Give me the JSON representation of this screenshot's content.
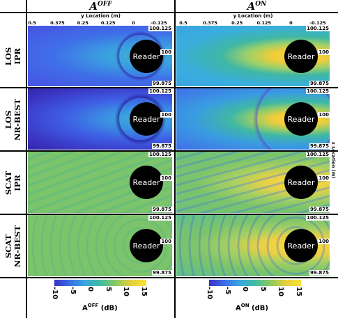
{
  "columns": [
    {
      "id": "off",
      "title": "A",
      "sup": "OFF"
    },
    {
      "id": "on",
      "title": "A",
      "sup": "ON"
    }
  ],
  "xaxis_label": "y Location (m)",
  "xaxis_ticks": [
    "0.5",
    "0.375",
    "0.25",
    "0.125",
    "0",
    "-0.125"
  ],
  "yaxis_label": "x Location (m)",
  "yaxis_ticks": [
    "100.125",
    "100",
    "99.875"
  ],
  "rows": [
    {
      "id": "los-ipr",
      "line1": "LOS",
      "line2": "IPR"
    },
    {
      "id": "los-nr-best",
      "line1": "LOS",
      "line2": "NR-BEST"
    },
    {
      "id": "scat-ipr",
      "line1": "SCAT",
      "line2": "IPR"
    },
    {
      "id": "scat-nr-best",
      "line1": "SCAT",
      "line2": "NR-BEST"
    }
  ],
  "reader_label": "Reader",
  "colorbars": [
    {
      "label": "A",
      "sup": "OFF",
      "unit": "(dB)",
      "ticks": [
        "-10",
        "-5",
        "0",
        "5",
        "10",
        "15"
      ]
    },
    {
      "label": "A",
      "sup": "ON",
      "unit": "(dB)",
      "ticks": [
        "-10",
        "-5",
        "0",
        "5",
        "10",
        "15"
      ]
    }
  ],
  "colors": {
    "low": "#3b2fc9",
    "mid": "#3fb7a5",
    "green": "#7cc46b",
    "high": "#f8dc3a"
  },
  "chart_data": {
    "type": "heatmap",
    "xlabel": "y Location (m)",
    "ylabel": "x Location (m)",
    "xlim": [
      0.5,
      -0.125
    ],
    "ylim": [
      99.875,
      100.125
    ],
    "colorbar_range": [
      -10,
      15
    ],
    "colorbar_unit": "dB",
    "panels_rows": [
      "LOS IPR",
      "LOS NR-BEST",
      "SCAT IPR",
      "SCAT NR-BEST"
    ],
    "panels_cols": [
      "A^OFF",
      "A^ON"
    ]
  }
}
